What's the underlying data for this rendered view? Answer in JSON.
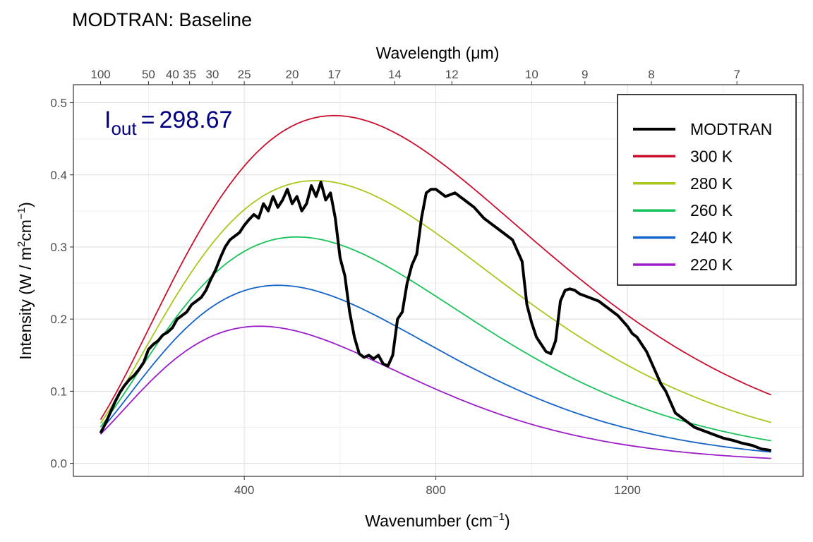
{
  "chart_data": {
    "type": "line",
    "title": "MODTRAN: Baseline",
    "xlabel": "Wavenumber (cm",
    "xlabel_sup": "−1",
    "xlabel_end": ")",
    "top_axis_label": "Wavelength (μm)",
    "ylabel": "Intensity (W / m",
    "ylabel_sup1": "2",
    "ylabel_mid": "cm",
    "ylabel_sup2": "−1",
    "ylabel_end": ")",
    "xlim": [
      100,
      1500
    ],
    "ylim": [
      0,
      0.5
    ],
    "x_ticks": [
      400,
      800,
      1200
    ],
    "x_tick_labels": [
      "400",
      "800",
      "1200"
    ],
    "y_ticks": [
      0.0,
      0.1,
      0.2,
      0.3,
      0.4,
      0.5
    ],
    "y_tick_labels": [
      "0.0",
      "0.1",
      "0.2",
      "0.3",
      "0.4",
      "0.5"
    ],
    "top_ticks": [
      100,
      50,
      40,
      35,
      30,
      25,
      20,
      17,
      14,
      12,
      10,
      9,
      8,
      7
    ],
    "top_tick_labels": [
      "100",
      "50",
      "40",
      "35",
      "30",
      "25",
      "20",
      "17",
      "14",
      "12",
      "10",
      "9",
      "8",
      "7"
    ],
    "grid": true,
    "legend_position": "top-right",
    "annotation": {
      "main": "I",
      "sub": "out",
      "eq": "=",
      "value": "298.67",
      "color": "#000080"
    },
    "series": [
      {
        "name": "MODTRAN",
        "color": "#000000",
        "x": [
          100,
          110,
          120,
          130,
          140,
          150,
          160,
          170,
          180,
          190,
          200,
          210,
          220,
          230,
          240,
          250,
          260,
          270,
          280,
          290,
          300,
          310,
          320,
          330,
          340,
          350,
          360,
          370,
          380,
          390,
          400,
          410,
          420,
          430,
          440,
          450,
          460,
          470,
          480,
          490,
          500,
          510,
          520,
          530,
          540,
          550,
          560,
          570,
          580,
          590,
          600,
          610,
          620,
          630,
          640,
          650,
          660,
          670,
          680,
          690,
          700,
          710,
          720,
          730,
          740,
          750,
          760,
          770,
          780,
          790,
          800,
          820,
          840,
          860,
          880,
          900,
          920,
          940,
          960,
          980,
          990,
          1000,
          1010,
          1020,
          1030,
          1040,
          1050,
          1060,
          1070,
          1080,
          1090,
          1100,
          1120,
          1140,
          1160,
          1180,
          1200,
          1210,
          1220,
          1230,
          1240,
          1250,
          1260,
          1270,
          1280,
          1290,
          1300,
          1320,
          1340,
          1360,
          1380,
          1400,
          1420,
          1440,
          1460,
          1480,
          1500
        ],
        "y": [
          0.042,
          0.055,
          0.07,
          0.085,
          0.098,
          0.108,
          0.116,
          0.122,
          0.13,
          0.14,
          0.158,
          0.165,
          0.17,
          0.178,
          0.182,
          0.188,
          0.2,
          0.205,
          0.21,
          0.22,
          0.225,
          0.23,
          0.24,
          0.255,
          0.268,
          0.285,
          0.3,
          0.31,
          0.315,
          0.32,
          0.33,
          0.338,
          0.345,
          0.34,
          0.36,
          0.35,
          0.37,
          0.355,
          0.365,
          0.38,
          0.36,
          0.37,
          0.35,
          0.36,
          0.385,
          0.37,
          0.39,
          0.365,
          0.375,
          0.34,
          0.285,
          0.26,
          0.21,
          0.175,
          0.152,
          0.147,
          0.15,
          0.145,
          0.15,
          0.138,
          0.135,
          0.15,
          0.2,
          0.21,
          0.25,
          0.275,
          0.29,
          0.34,
          0.375,
          0.38,
          0.38,
          0.37,
          0.375,
          0.365,
          0.355,
          0.34,
          0.33,
          0.32,
          0.31,
          0.28,
          0.22,
          0.195,
          0.175,
          0.165,
          0.155,
          0.152,
          0.17,
          0.225,
          0.24,
          0.242,
          0.24,
          0.235,
          0.23,
          0.225,
          0.215,
          0.205,
          0.19,
          0.18,
          0.175,
          0.165,
          0.155,
          0.14,
          0.125,
          0.11,
          0.1,
          0.085,
          0.07,
          0.06,
          0.05,
          0.045,
          0.04,
          0.035,
          0.032,
          0.028,
          0.025,
          0.02,
          0.018
        ]
      },
      {
        "name": "300 K",
        "color": "#c8102e",
        "temperature": 300
      },
      {
        "name": "280 K",
        "color": "#a8c81e",
        "temperature": 280
      },
      {
        "name": "260 K",
        "color": "#19c25a",
        "temperature": 260
      },
      {
        "name": "240 K",
        "color": "#1463c8",
        "temperature": 240
      },
      {
        "name": "220 K",
        "color": "#9b1ec8",
        "temperature": 220
      }
    ]
  }
}
